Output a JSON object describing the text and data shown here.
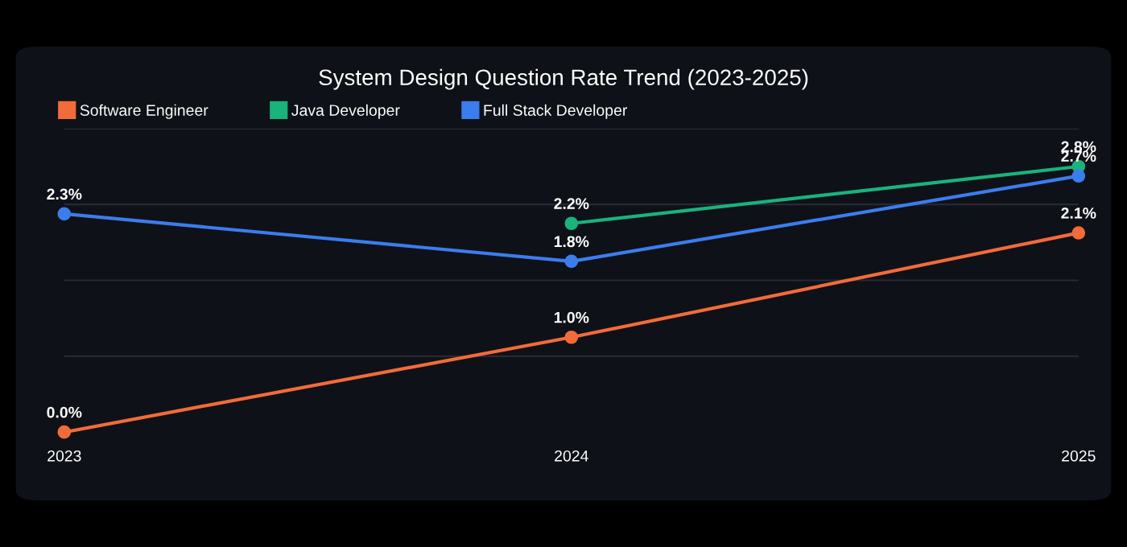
{
  "chart_data": {
    "type": "line",
    "title": "System Design Question Rate Trend (2023-2025)",
    "categories": [
      "2023",
      "2024",
      "2025"
    ],
    "series": [
      {
        "name": "Software Engineer",
        "color": "#f26b3a",
        "values": [
          0.0,
          1.0,
          2.1
        ],
        "value_labels": [
          "0.0%",
          "1.0%",
          "2.1%"
        ]
      },
      {
        "name": "Java Developer",
        "color": "#19b37b",
        "values": [
          null,
          2.2,
          2.8
        ],
        "value_labels": [
          null,
          "2.2%",
          "2.8%"
        ]
      },
      {
        "name": "Full Stack Developer",
        "color": "#3b7ded",
        "values": [
          2.3,
          1.8,
          2.7
        ],
        "value_labels": [
          "2.3%",
          "1.8%",
          "2.7%"
        ]
      }
    ],
    "yticks": [
      {
        "value": 0.8,
        "label": null
      },
      {
        "value": 1.6,
        "label": null
      },
      {
        "value": 2.4,
        "label": null
      },
      {
        "value": 3.2,
        "label": null
      }
    ],
    "grid": "y",
    "legend": "top left",
    "marker": "circle",
    "line_style": "solid"
  }
}
